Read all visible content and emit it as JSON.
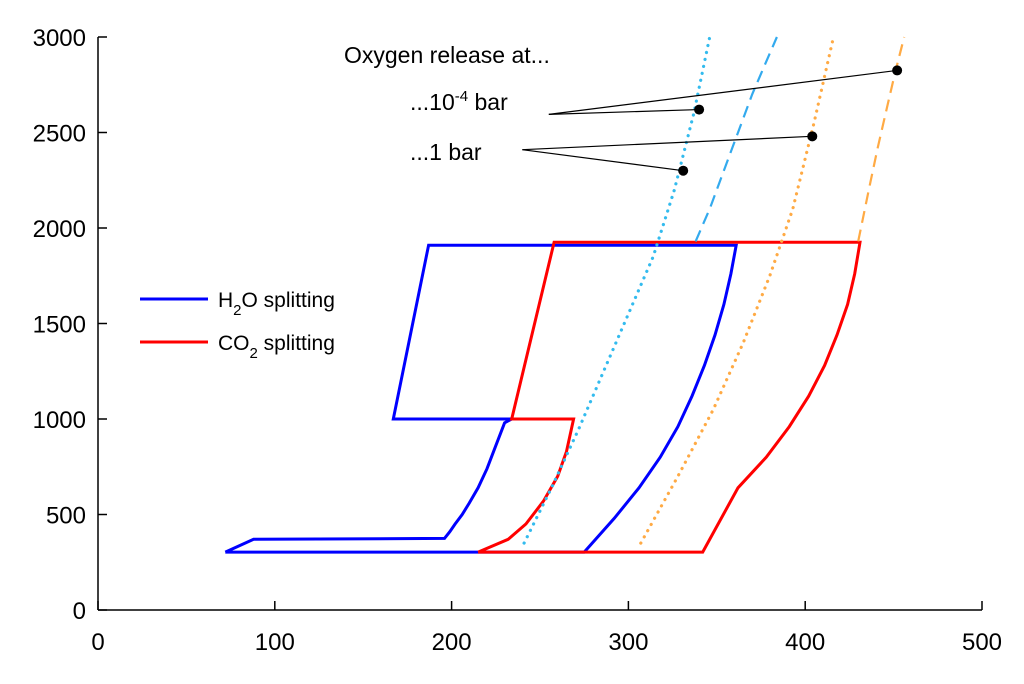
{
  "chart_data": {
    "type": "line",
    "title": "",
    "xlabel": "",
    "ylabel": "",
    "xlim": [
      0,
      500
    ],
    "ylim": [
      0,
      3000
    ],
    "xticks": [
      0,
      100,
      200,
      300,
      400,
      500
    ],
    "yticks": [
      0,
      500,
      1000,
      1500,
      2000,
      2500,
      3000
    ],
    "xtick_labels": [
      "0",
      "100",
      "200",
      "300",
      "400",
      "500"
    ],
    "ytick_labels": [
      "0",
      "500",
      "1000",
      "1500",
      "2000",
      "2500",
      "3000"
    ],
    "grid": false,
    "legend_position": "left",
    "series": [
      {
        "name": "H2O splitting",
        "legend_main": "H",
        "legend_sub": "2",
        "legend_rest": "O splitting",
        "color": "#0000ff",
        "style": "solid",
        "x": [
          72,
          88,
          196,
          199,
          202,
          206,
          210,
          215,
          220,
          225,
          230,
          234,
          167,
          187,
          361,
          358,
          354,
          349,
          343,
          336,
          328,
          318,
          306,
          292,
          275,
          215,
          72
        ],
        "y": [
          303,
          370,
          375,
          410,
          450,
          500,
          560,
          640,
          740,
          860,
          980,
          1000,
          1000,
          1910,
          1910,
          1760,
          1600,
          1440,
          1280,
          1120,
          960,
          800,
          640,
          480,
          303,
          303,
          303
        ]
      },
      {
        "name": "CO2 splitting",
        "legend_main": "CO",
        "legend_sub": "2",
        "legend_rest": " splitting",
        "color": "#ff0000",
        "style": "solid",
        "x": [
          215,
          232,
          242,
          252,
          260,
          265,
          269,
          234,
          258,
          431,
          428,
          424,
          418,
          411,
          402,
          391,
          378,
          362,
          342,
          215
        ],
        "y": [
          303,
          370,
          450,
          570,
          700,
          830,
          1000,
          1000,
          1925,
          1925,
          1760,
          1600,
          1440,
          1280,
          1120,
          960,
          800,
          640,
          303,
          303
        ]
      },
      {
        "name": "",
        "color": "#33bbee",
        "style": "dotted",
        "x": [
          241,
          257,
          272,
          286,
          300,
          314,
          326,
          337,
          346
        ],
        "y": [
          350,
          650,
          950,
          1250,
          1550,
          1850,
          2200,
          2600,
          3000
        ]
      },
      {
        "name": "",
        "color": "#33aaee",
        "style": "dashed",
        "x": [
          338,
          346,
          352,
          358,
          364,
          370,
          377,
          384
        ],
        "y": [
          1930,
          2100,
          2250,
          2400,
          2550,
          2700,
          2850,
          3000
        ]
      },
      {
        "name": "",
        "color": "#ffaa44",
        "style": "dotted",
        "x": [
          307,
          328,
          348,
          365,
          380,
          393,
          405,
          416
        ],
        "y": [
          350,
          700,
          1050,
          1400,
          1750,
          2100,
          2550,
          3000
        ]
      },
      {
        "name": "",
        "color": "#ffaa44",
        "style": "dashed",
        "x": [
          430,
          436,
          441,
          446,
          451,
          456
        ],
        "y": [
          1930,
          2200,
          2420,
          2620,
          2820,
          3000
        ]
      }
    ],
    "markers": [
      {
        "x": 340,
        "y": 2620
      },
      {
        "x": 452,
        "y": 2825
      },
      {
        "x": 331,
        "y": 2300
      },
      {
        "x": 404,
        "y": 2480
      }
    ],
    "annotations": {
      "header": "Oxygen release at...",
      "low_pressure_prefix": "...10",
      "low_pressure_exp": "-4",
      "low_pressure_suffix": " bar",
      "high_pressure": "...1 bar"
    },
    "leader_lines": [
      {
        "from": [
          255,
          2595
        ],
        "to": [
          340,
          2620
        ]
      },
      {
        "from": [
          255,
          2595
        ],
        "to": [
          452,
          2825
        ]
      },
      {
        "from": [
          240,
          2410
        ],
        "to": [
          331,
          2300
        ]
      },
      {
        "from": [
          240,
          2410
        ],
        "to": [
          404,
          2480
        ]
      }
    ]
  }
}
